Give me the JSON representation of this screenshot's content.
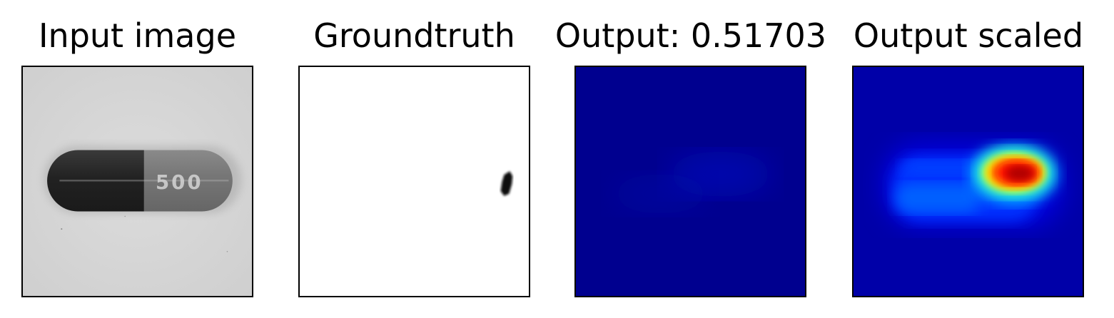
{
  "panels": [
    {
      "title": "Input image"
    },
    {
      "title": "Groundtruth"
    },
    {
      "title": "Output: 0.51703"
    },
    {
      "title": "Output scaled"
    }
  ],
  "input_image": {
    "capsule_text": "500"
  }
}
